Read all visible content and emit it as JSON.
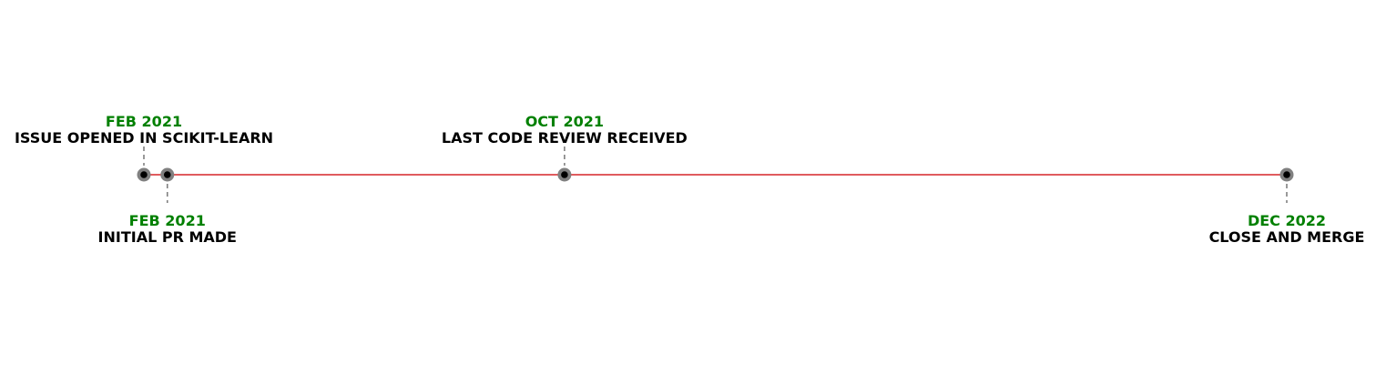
{
  "chart_data": {
    "type": "timeline",
    "title": "",
    "events": [
      {
        "date": "2021-02-01",
        "date_label": "FEB 2021",
        "label": "ISSUE OPENED IN SCIKIT-LEARN",
        "placement": "above"
      },
      {
        "date": "2021-02-15",
        "date_label": "FEB 2021",
        "label": "INITIAL PR MADE",
        "placement": "below"
      },
      {
        "date": "2021-10-10",
        "date_label": "OCT 2021",
        "label": "LAST CODE REVIEW RECEIVED",
        "placement": "above"
      },
      {
        "date": "2022-12-15",
        "date_label": "DEC 2022",
        "label": "CLOSE AND MERGE",
        "placement": "below"
      }
    ],
    "xlim": [
      "2021-02-01",
      "2022-12-15"
    ],
    "colors": {
      "line": "#d62728",
      "date_text": "#008000",
      "label_text": "#000000",
      "marker_outer": "#808080",
      "marker_inner": "#000000",
      "stem": "#808080"
    }
  }
}
